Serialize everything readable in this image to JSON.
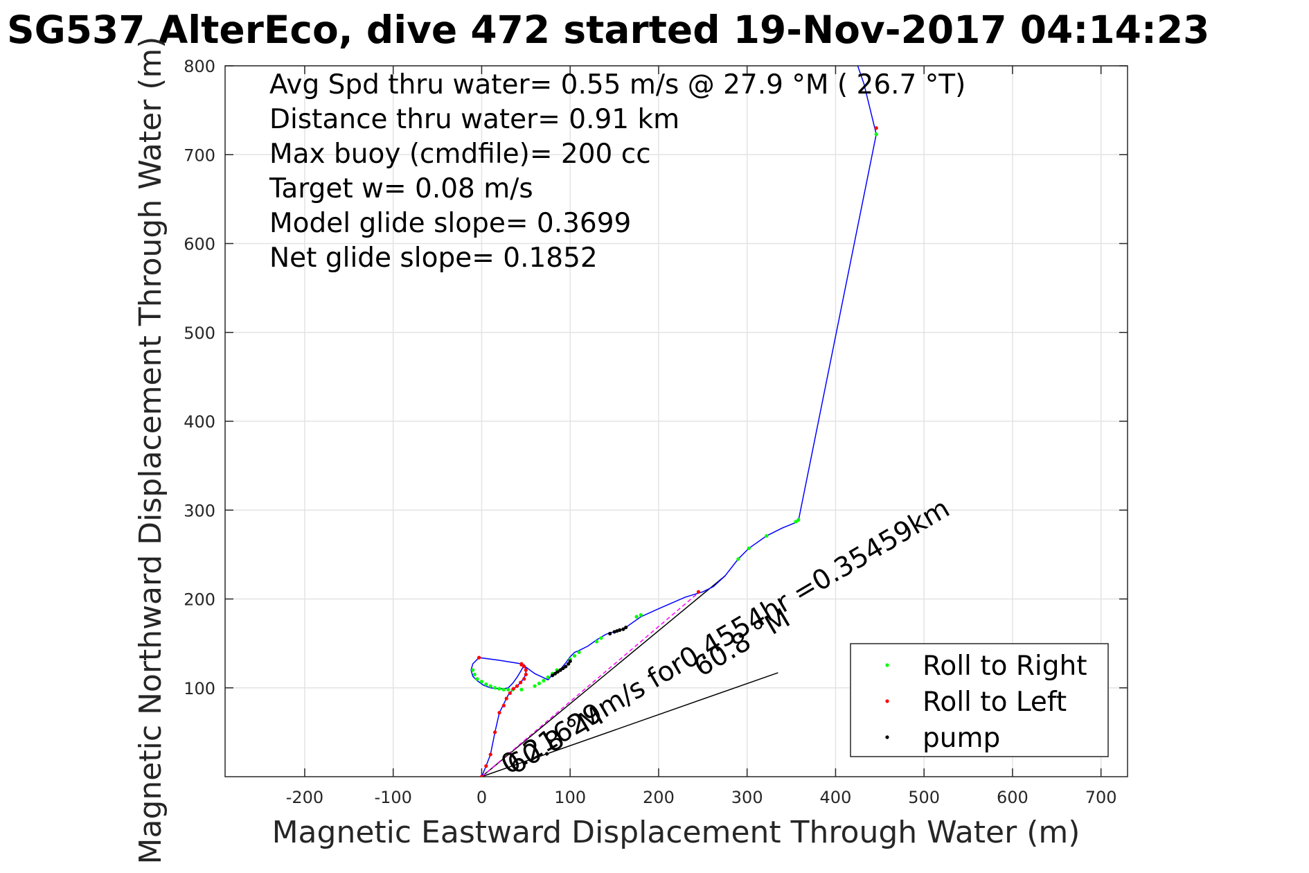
{
  "chart_data": {
    "type": "line",
    "title": "SG537 AlterEco, dive 472 started 19-Nov-2017 04:14:23",
    "xlabel": "Magnetic Eastward Displacement Through Water (m)",
    "ylabel": "Magnetic Northward Displacement Through Water (m)",
    "xlim": [
      -290,
      730
    ],
    "ylim": [
      0,
      800
    ],
    "xticks": [
      -200,
      -100,
      0,
      100,
      200,
      300,
      400,
      500,
      600,
      700
    ],
    "yticks": [
      100,
      200,
      300,
      400,
      500,
      600,
      700,
      800
    ],
    "grid": true,
    "legend_position": "bottom-right",
    "info_lines": [
      "Avg Spd thru water=  0.55 m/s @  27.9 °M ( 26.7 °T)",
      "Distance thru water=  0.91 km",
      "Max buoy (cmdfile)= 200 cc",
      "Target w= 0.08 m/s",
      "Model glide slope= 0.3699",
      "Net glide slope= 0.1852"
    ],
    "track": {
      "color": "#0000ff",
      "x": [
        0,
        5,
        10,
        15,
        20,
        25,
        30,
        35,
        40,
        45,
        50,
        50,
        48,
        45,
        40,
        35,
        30,
        25,
        18,
        10,
        2,
        -5,
        -10,
        -12,
        -10,
        -5,
        -3,
        20,
        45,
        60,
        75,
        80,
        90,
        95,
        100,
        105,
        110,
        120,
        130,
        140,
        145,
        150,
        160,
        180,
        200,
        230,
        250,
        262,
        275,
        290,
        302,
        322,
        340,
        355,
        358,
        446,
        432,
        425
      ],
      "y": [
        0,
        12,
        25,
        50,
        72,
        82,
        92,
        98,
        102,
        107,
        115,
        122,
        126,
        120,
        112,
        105,
        100,
        99,
        99,
        100,
        103,
        108,
        113,
        120,
        127,
        132,
        134,
        131,
        127,
        116,
        109,
        115,
        122,
        128,
        135,
        140,
        142,
        147,
        154,
        160,
        162,
        163,
        166,
        180,
        189,
        202,
        208,
        214,
        226,
        245,
        257,
        271,
        280,
        286,
        288,
        723,
        780,
        800
      ]
    },
    "series": [
      {
        "name": "Roll to Right",
        "color": "#00ff00",
        "x": [
          -10,
          -8,
          -5,
          0,
          5,
          10,
          15,
          20,
          25,
          30,
          35,
          45,
          60,
          65,
          70,
          75,
          80,
          85,
          100,
          105,
          110,
          130,
          135,
          175,
          180,
          290,
          302,
          322,
          355,
          358,
          446
        ],
        "y": [
          120,
          115,
          110,
          107,
          104,
          102,
          100,
          99,
          98,
          98,
          98,
          98,
          102,
          105,
          108,
          112,
          116,
          120,
          132,
          136,
          140,
          152,
          156,
          180,
          182,
          245,
          257,
          271,
          287,
          289,
          723
        ]
      },
      {
        "name": "Roll to Left",
        "color": "#ff0000",
        "x": [
          0,
          5,
          10,
          15,
          20,
          25,
          28,
          32,
          36,
          40,
          44,
          48,
          50,
          50,
          48,
          45,
          -3,
          45,
          245,
          446
        ],
        "y": [
          0,
          12,
          25,
          50,
          72,
          80,
          88,
          94,
          99,
          102,
          106,
          110,
          115,
          120,
          124,
          126,
          134,
          127,
          208,
          730
        ]
      },
      {
        "name": "pump",
        "color": "#000000",
        "x": [
          80,
          83,
          86,
          89,
          92,
          95,
          98,
          100,
          145,
          150,
          153,
          156,
          160,
          163
        ],
        "y": [
          114,
          116,
          118,
          120,
          122,
          124,
          127,
          130,
          161,
          163,
          164,
          165,
          166,
          168
        ]
      }
    ],
    "current_lines": [
      {
        "x": [
          0,
          275
        ],
        "y": [
          0,
          226
        ]
      },
      {
        "x": [
          0,
          335
        ],
        "y": [
          0,
          117
        ]
      }
    ],
    "magenta_line": {
      "color": "#ff00ff",
      "x": [
        0,
        245
      ],
      "y": [
        0,
        207
      ]
    },
    "annotations": [
      {
        "text": "0.21629m/s for0.4554hr =0.35459km",
        "x": 30,
        "y": 2,
        "angle": 30.5
      },
      {
        "text": "60.8 °M",
        "x": 37,
        "y": 2,
        "angle": 30.5
      },
      {
        "text": "60.8 °M",
        "x": 248,
        "y": 112,
        "angle": 30.5
      }
    ]
  }
}
